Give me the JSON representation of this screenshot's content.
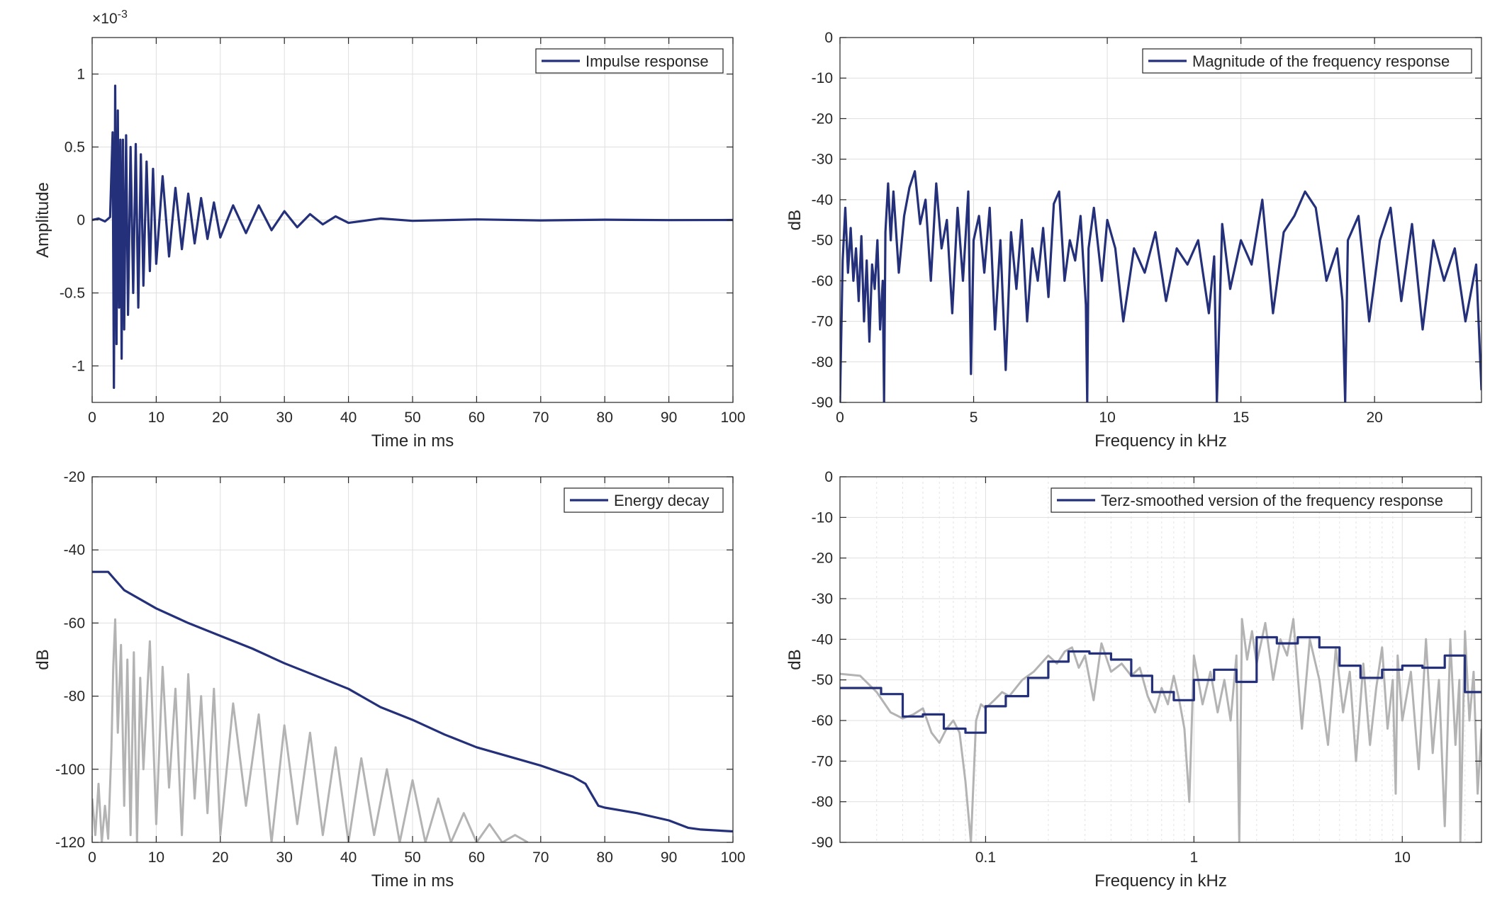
{
  "figure": {
    "navy": "#24307a",
    "gray": "#b3b3b3",
    "axis_color": "#262626",
    "grid_color": "#dfdfdf"
  },
  "chart_data": [
    {
      "type": "line",
      "panel": "impulse-response",
      "xlabel": "Time in ms",
      "ylabel": "Amplitude",
      "exponent_label": "×10",
      "exponent_power": "-3",
      "xlim": [
        0,
        100
      ],
      "ylim": [
        -1.25,
        1.25
      ],
      "xticks": [
        0,
        10,
        20,
        30,
        40,
        50,
        60,
        70,
        80,
        90,
        100
      ],
      "yticks": [
        -1,
        -0.5,
        0,
        0.5,
        1
      ],
      "xtick_labels": [
        "0",
        "10",
        "20",
        "30",
        "40",
        "50",
        "60",
        "70",
        "80",
        "90",
        "100"
      ],
      "ytick_labels": [
        "-1",
        "-0.5",
        "0",
        "0.5",
        "1"
      ],
      "legend": "Impulse response",
      "legend_position": "top-right",
      "grid": true,
      "series": [
        {
          "name": "Impulse response",
          "color": "#24307a",
          "x": [
            0,
            1,
            2,
            2.8,
            3.2,
            3.4,
            3.6,
            3.8,
            4.0,
            4.2,
            4.4,
            4.6,
            4.8,
            5.0,
            5.3,
            5.6,
            6.0,
            6.4,
            6.8,
            7.2,
            7.6,
            8.0,
            8.5,
            9.0,
            9.5,
            10,
            11,
            12,
            13,
            14,
            15,
            16,
            17,
            18,
            19,
            20,
            22,
            24,
            26,
            28,
            30,
            32,
            34,
            36,
            38,
            40,
            45,
            50,
            60,
            70,
            80,
            90,
            100
          ],
          "values": [
            0,
            0.01,
            -0.01,
            0.02,
            0.6,
            -1.15,
            0.92,
            -0.85,
            0.75,
            -0.6,
            0.55,
            -0.95,
            0.55,
            -0.75,
            0.58,
            -0.65,
            0.5,
            -0.5,
            0.52,
            -0.6,
            0.45,
            -0.45,
            0.4,
            -0.35,
            0.35,
            -0.3,
            0.3,
            -0.25,
            0.22,
            -0.2,
            0.18,
            -0.16,
            0.15,
            -0.13,
            0.12,
            -0.12,
            0.1,
            -0.09,
            0.1,
            -0.07,
            0.06,
            -0.05,
            0.04,
            -0.03,
            0.025,
            -0.02,
            0.01,
            -0.006,
            0.004,
            -0.003,
            0.002,
            -0.001,
            0
          ]
        }
      ]
    },
    {
      "type": "line",
      "panel": "magnitude-frequency-response",
      "xlabel": "Frequency in kHz",
      "ylabel": "dB",
      "xlim": [
        0,
        24
      ],
      "ylim": [
        -90,
        0
      ],
      "xticks": [
        0,
        5,
        10,
        15,
        20
      ],
      "yticks": [
        -90,
        -80,
        -70,
        -60,
        -50,
        -40,
        -30,
        -20,
        -10,
        0
      ],
      "xtick_labels": [
        "0",
        "5",
        "10",
        "15",
        "20"
      ],
      "ytick_labels": [
        "-90",
        "-80",
        "-70",
        "-60",
        "-50",
        "-40",
        "-30",
        "-20",
        "-10",
        "0"
      ],
      "legend": "Magnitude of the frequency response",
      "legend_position": "top-right",
      "grid": true,
      "series": [
        {
          "name": "Magnitude of the frequency response",
          "color": "#24307a",
          "x": [
            0,
            0.1,
            0.2,
            0.3,
            0.4,
            0.5,
            0.6,
            0.7,
            0.8,
            0.9,
            1.0,
            1.1,
            1.2,
            1.3,
            1.4,
            1.5,
            1.6,
            1.65,
            1.7,
            1.8,
            1.9,
            2.0,
            2.2,
            2.4,
            2.6,
            2.8,
            3.0,
            3.2,
            3.4,
            3.6,
            3.8,
            4.0,
            4.2,
            4.4,
            4.6,
            4.8,
            4.9,
            5.0,
            5.2,
            5.4,
            5.6,
            5.8,
            6.0,
            6.2,
            6.4,
            6.6,
            6.8,
            7.0,
            7.2,
            7.4,
            7.6,
            7.8,
            8.0,
            8.2,
            8.4,
            8.6,
            8.8,
            9.0,
            9.2,
            9.25,
            9.3,
            9.5,
            9.8,
            10.0,
            10.3,
            10.6,
            11.0,
            11.4,
            11.8,
            12.2,
            12.6,
            13.0,
            13.4,
            13.8,
            14.0,
            14.1,
            14.3,
            14.6,
            15.0,
            15.4,
            15.8,
            16.2,
            16.6,
            17.0,
            17.4,
            17.8,
            18.2,
            18.6,
            18.8,
            18.9,
            19.0,
            19.4,
            19.8,
            20.2,
            20.6,
            21.0,
            21.4,
            21.8,
            22.2,
            22.6,
            23.0,
            23.4,
            23.8,
            24.0
          ],
          "values": [
            -90,
            -55,
            -42,
            -58,
            -47,
            -60,
            -52,
            -65,
            -49,
            -70,
            -55,
            -75,
            -56,
            -62,
            -50,
            -72,
            -60,
            -90,
            -48,
            -36,
            -50,
            -38,
            -58,
            -44,
            -37,
            -33,
            -46,
            -40,
            -60,
            -36,
            -52,
            -45,
            -68,
            -42,
            -60,
            -38,
            -83,
            -50,
            -44,
            -58,
            -42,
            -72,
            -50,
            -82,
            -48,
            -62,
            -45,
            -70,
            -52,
            -60,
            -47,
            -64,
            -41,
            -38,
            -60,
            -50,
            -55,
            -44,
            -66,
            -90,
            -52,
            -42,
            -60,
            -45,
            -52,
            -70,
            -52,
            -58,
            -48,
            -65,
            -52,
            -56,
            -50,
            -68,
            -54,
            -90,
            -46,
            -62,
            -50,
            -56,
            -40,
            -68,
            -48,
            -44,
            -38,
            -42,
            -60,
            -52,
            -65,
            -90,
            -50,
            -44,
            -70,
            -50,
            -42,
            -65,
            -46,
            -72,
            -50,
            -60,
            -52,
            -70,
            -56,
            -87
          ]
        }
      ]
    },
    {
      "type": "line",
      "panel": "energy-decay",
      "xlabel": "Time in ms",
      "ylabel": "dB",
      "xlim": [
        0,
        100
      ],
      "ylim": [
        -120,
        -20
      ],
      "xticks": [
        0,
        10,
        20,
        30,
        40,
        50,
        60,
        70,
        80,
        90,
        100
      ],
      "yticks": [
        -120,
        -100,
        -80,
        -60,
        -40,
        -20
      ],
      "xtick_labels": [
        "0",
        "10",
        "20",
        "30",
        "40",
        "50",
        "60",
        "70",
        "80",
        "90",
        "100"
      ],
      "ytick_labels": [
        "-120",
        "-100",
        "-80",
        "-60",
        "-40",
        "-20"
      ],
      "legend": "Energy decay",
      "legend_position": "top-right",
      "grid": true,
      "series": [
        {
          "name": "Energy decay",
          "color": "#24307a",
          "x": [
            0,
            2.5,
            3.5,
            5,
            10,
            15,
            20,
            25,
            30,
            35,
            40,
            45,
            50,
            55,
            60,
            65,
            70,
            75,
            77,
            78,
            79,
            80,
            85,
            90,
            93,
            95,
            100
          ],
          "values": [
            -46,
            -46,
            -48,
            -51,
            -56,
            -60,
            -63.5,
            -67,
            -71,
            -74.5,
            -78,
            -83,
            -86.5,
            -90.5,
            -94,
            -96.5,
            -99,
            -102,
            -104,
            -107,
            -110,
            -110.5,
            -112,
            -114,
            -116,
            -116.5,
            -117
          ]
        },
        {
          "color": "#b3b3b3",
          "x": [
            0,
            0.5,
            1,
            1.5,
            2,
            2.5,
            3,
            3.3,
            3.6,
            4,
            4.5,
            5,
            5.5,
            6,
            6.5,
            7,
            7.5,
            8,
            9,
            10,
            11,
            12,
            13,
            14,
            15,
            16,
            17,
            18,
            19,
            20,
            22,
            24,
            26,
            28,
            30,
            32,
            34,
            36,
            38,
            40,
            42,
            44,
            46,
            48,
            50,
            52,
            54,
            56,
            58,
            60,
            62,
            64,
            66,
            68
          ],
          "values": [
            -108,
            -118,
            -104,
            -120,
            -110,
            -119,
            -95,
            -72,
            -59,
            -90,
            -66,
            -110,
            -70,
            -118,
            -68,
            -120,
            -75,
            -100,
            -65,
            -115,
            -72,
            -105,
            -78,
            -118,
            -74,
            -108,
            -80,
            -112,
            -78,
            -118,
            -82,
            -110,
            -85,
            -120,
            -88,
            -115,
            -90,
            -118,
            -94,
            -120,
            -97,
            -118,
            -100,
            -120,
            -103,
            -120,
            -108,
            -120,
            -112,
            -120,
            -115,
            -120,
            -118,
            -120
          ]
        }
      ]
    },
    {
      "type": "line",
      "panel": "terz-smoothed-frequency-response",
      "xlabel": "Frequency in kHz",
      "ylabel": "dB",
      "xscale": "log",
      "xlim": [
        0.02,
        24
      ],
      "ylim": [
        -90,
        0
      ],
      "xticks": [
        0.1,
        1,
        10
      ],
      "yticks": [
        -90,
        -80,
        -70,
        -60,
        -50,
        -40,
        -30,
        -20,
        -10,
        0
      ],
      "xtick_labels": [
        "0.1",
        "1",
        "10"
      ],
      "ytick_labels": [
        "-90",
        "-80",
        "-70",
        "-60",
        "-50",
        "-40",
        "-30",
        "-20",
        "-10",
        "0"
      ],
      "legend": "Terz-smoothed version of the frequency response",
      "legend_position": "top-right",
      "grid": true,
      "series": [
        {
          "name": "Terz-smoothed version of the frequency response",
          "color": "#24307a",
          "step": true,
          "x": [
            0.02,
            0.0315,
            0.04,
            0.05,
            0.063,
            0.08,
            0.1,
            0.125,
            0.16,
            0.2,
            0.25,
            0.315,
            0.4,
            0.5,
            0.63,
            0.8,
            1.0,
            1.25,
            1.6,
            2.0,
            2.5,
            3.15,
            4.0,
            5.0,
            6.3,
            8.0,
            10.0,
            12.5,
            16.0,
            20.0,
            24.0
          ],
          "values": [
            -52,
            -53.5,
            -59,
            -58.5,
            -62,
            -63,
            -56.5,
            -54,
            -49.5,
            -45.5,
            -43,
            -43.5,
            -45,
            -49,
            -53,
            -55,
            -50,
            -47.5,
            -50.5,
            -39.5,
            -41,
            -39.5,
            -42,
            -46.5,
            -49.5,
            -47.5,
            -46.5,
            -47,
            -44,
            -53,
            -53
          ]
        },
        {
          "color": "#b3b3b3",
          "x": [
            0.02,
            0.025,
            0.03,
            0.035,
            0.04,
            0.045,
            0.05,
            0.055,
            0.06,
            0.065,
            0.07,
            0.075,
            0.08,
            0.085,
            0.09,
            0.095,
            0.1,
            0.11,
            0.12,
            0.13,
            0.15,
            0.17,
            0.2,
            0.22,
            0.24,
            0.26,
            0.28,
            0.3,
            0.33,
            0.36,
            0.4,
            0.45,
            0.5,
            0.55,
            0.6,
            0.65,
            0.7,
            0.75,
            0.8,
            0.85,
            0.9,
            0.95,
            1.0,
            1.1,
            1.2,
            1.3,
            1.4,
            1.5,
            1.6,
            1.65,
            1.7,
            1.8,
            1.9,
            2.0,
            2.2,
            2.4,
            2.6,
            2.8,
            3.0,
            3.3,
            3.6,
            4.0,
            4.4,
            4.8,
            5.2,
            5.6,
            6.0,
            6.5,
            7.0,
            7.5,
            8.0,
            8.5,
            9.0,
            9.3,
            9.5,
            10.0,
            11.0,
            12.0,
            13.0,
            14.0,
            15.0,
            16.0,
            17.0,
            18.0,
            18.8,
            19.0,
            20.0,
            21.0,
            22.0,
            23.0,
            24.0
          ],
          "values": [
            -48.5,
            -49,
            -53,
            -58,
            -59.5,
            -58.5,
            -57,
            -63,
            -65.5,
            -62,
            -60,
            -63,
            -75,
            -90,
            -60,
            -56,
            -57,
            -55,
            -53,
            -54,
            -50,
            -48,
            -44,
            -46,
            -43,
            -42,
            -47,
            -44,
            -55,
            -41,
            -48,
            -46,
            -49,
            -47,
            -54,
            -58,
            -52,
            -56,
            -49,
            -55,
            -62,
            -80,
            -44,
            -56,
            -48,
            -58,
            -50,
            -60,
            -44,
            -90,
            -35,
            -45,
            -38,
            -46,
            -36,
            -50,
            -40,
            -44,
            -35,
            -62,
            -40,
            -50,
            -66,
            -42,
            -58,
            -48,
            -70,
            -46,
            -66,
            -52,
            -42,
            -62,
            -50,
            -78,
            -44,
            -60,
            -48,
            -72,
            -40,
            -68,
            -50,
            -86,
            -40,
            -66,
            -50,
            -90,
            -38,
            -60,
            -48,
            -78,
            -62
          ]
        }
      ]
    }
  ]
}
